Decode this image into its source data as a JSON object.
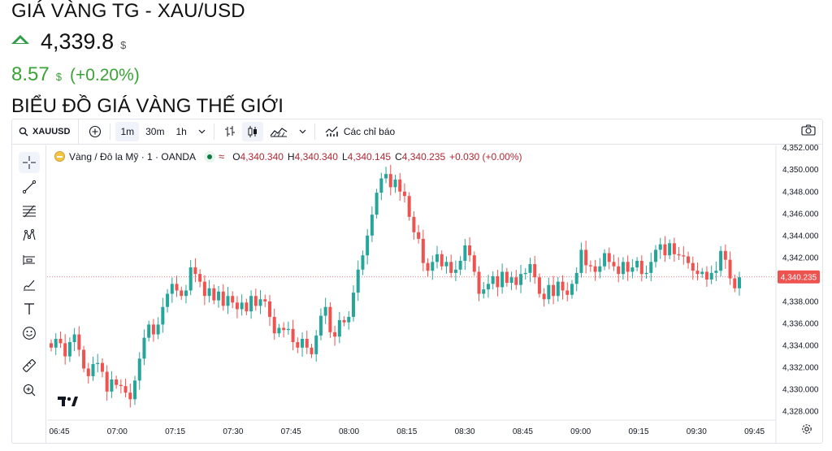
{
  "page": {
    "title": "GIÁ VÀNG TG - XAU/USD",
    "price": "4,339.8",
    "price_unit": "$",
    "change": "8.57",
    "change_unit": "$",
    "change_pct": "(+0.20%)",
    "section_title": "BIỂU ĐỒ GIÁ VÀNG THẾ GIỚI",
    "up_color": "#2e9c45"
  },
  "toolbar": {
    "symbol": "XAUUSD",
    "intervals": [
      "1m",
      "30m",
      "1h"
    ],
    "active_interval": "1m",
    "indicators_label": "Các chỉ báo"
  },
  "legend": {
    "name": "Vàng / Đô la Mỹ · 1 · OANDA",
    "wave": "≈",
    "o_label": "O",
    "o_val": "4,340.340",
    "h_label": "H",
    "h_val": "4,340.340",
    "l_label": "L",
    "l_val": "4,340.145",
    "c_label": "C",
    "c_val": "4,340.235",
    "chg": "+0.030 (+0.00%)"
  },
  "left_tools": [
    "crosshair-icon",
    "trend-line-icon",
    "fib-icon",
    "pattern-icon",
    "measure-icon",
    "brush-icon",
    "text-icon",
    "emoji-icon",
    "ruler-icon",
    "zoom-in-icon",
    "magnet-icon"
  ],
  "chart_data": {
    "type": "candlestick",
    "up_color": "#26a69a",
    "down_color": "#ef5350",
    "y_ticks": [
      "4,352.000",
      "4,350.000",
      "4,348.000",
      "4,346.000",
      "4,344.000",
      "4,342.000",
      "4,340.000",
      "4,338.000",
      "4,336.000",
      "4,334.000",
      "4,332.000",
      "4,330.000",
      "4,328.000"
    ],
    "ylim": [
      4327.2,
      4352.2
    ],
    "x_ticks": [
      "06:45",
      "07:00",
      "07:15",
      "07:30",
      "07:45",
      "08:00",
      "08:15",
      "08:30",
      "08:45",
      "09:00",
      "09:15",
      "09:30",
      "09:45"
    ],
    "current_price_label": "4,340.235",
    "current_price": 4340.235,
    "closes": [
      4333.8,
      4334.6,
      4334.2,
      4333.0,
      4334.3,
      4335.0,
      4333.6,
      4331.9,
      4331.2,
      4332.3,
      4332.4,
      4331.6,
      4329.8,
      4330.9,
      4330.4,
      4330.3,
      4329.7,
      4329.1,
      4330.8,
      4332.8,
      4334.7,
      4335.9,
      4335.0,
      4335.9,
      4337.5,
      4338.7,
      4339.6,
      4339.0,
      4338.5,
      4339.0,
      4341.1,
      4340.5,
      4339.8,
      4338.5,
      4339.2,
      4338.1,
      4338.9,
      4337.6,
      4338.5,
      4337.9,
      4337.3,
      4337.9,
      4337.1,
      4338.5,
      4337.6,
      4338.2,
      4338.0,
      4336.6,
      4335.1,
      4335.6,
      4335.4,
      4335.5,
      4334.3,
      4333.8,
      4334.6,
      4333.8,
      4333.2,
      4334.9,
      4336.7,
      4337.5,
      4335.2,
      4334.8,
      4336.3,
      4336.1,
      4336.6,
      4338.8,
      4340.9,
      4342.2,
      4344.0,
      4345.9,
      4347.9,
      4349.2,
      4349.6,
      4348.4,
      4349.1,
      4348.0,
      4347.6,
      4345.7,
      4344.3,
      4343.7,
      4341.5,
      4340.8,
      4341.6,
      4342.3,
      4341.2,
      4341.6,
      4340.6,
      4340.9,
      4341.7,
      4343.1,
      4342.2,
      4340.7,
      4338.7,
      4339.1,
      4339.6,
      4340.3,
      4339.3,
      4340.7,
      4339.7,
      4340.2,
      4339.5,
      4340.5,
      4340.6,
      4341.4,
      4340.2,
      4338.7,
      4338.2,
      4339.5,
      4338.5,
      4339.8,
      4339.0,
      4338.6,
      4339.6,
      4340.6,
      4342.7,
      4341.3,
      4341.2,
      4340.7,
      4341.2,
      4342.4,
      4341.6,
      4341.2,
      4340.5,
      4341.6,
      4340.7,
      4341.1,
      4341.7,
      4340.5,
      4340.6,
      4341.6,
      4342.7,
      4343.2,
      4342.2,
      4343.3,
      4342.3,
      4342.2,
      4342.1,
      4341.5,
      4340.8,
      4340.5,
      4340.7,
      4340.0,
      4340.6,
      4340.8,
      4342.6,
      4341.8,
      4340.1,
      4339.2,
      4340.2
    ]
  }
}
